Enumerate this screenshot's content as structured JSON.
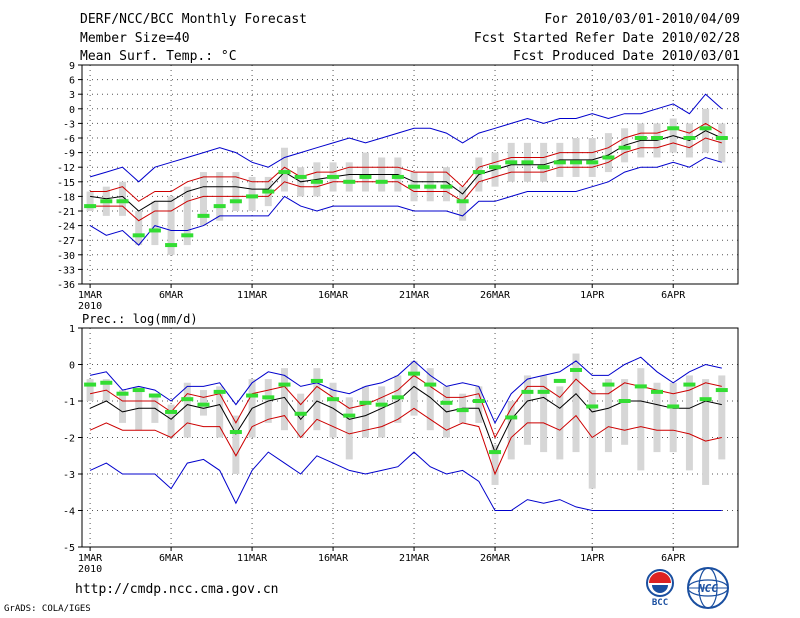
{
  "header": {
    "title": "DERF/NCC/BCC Monthly Forecast",
    "member_size": "Member Size=40",
    "variable": "Mean Surf. Temp.: °C",
    "period": "For 2010/03/01-2010/04/09",
    "start_date": "Fcst Started Refer Date 2010/02/28",
    "produced_date": "Fcst Produced Date 2010/03/01"
  },
  "footer": {
    "url": "http://cmdp.ncc.cma.gov.cn",
    "grads": "GrADS: COLA/IGES"
  },
  "logos": {
    "bcc": "BCC",
    "ncc": "NCC"
  },
  "colors": {
    "ensemble_max_min": "#0000cc",
    "ensemble_spread": "#cc0000",
    "ensemble_mean": "#000000",
    "observed": "#33dd33",
    "box": "#d6d6d6",
    "grid": "#555555"
  },
  "chart_data": [
    {
      "type": "line",
      "title": "Mean Surf. Temp.: °C",
      "ylabel": "°C",
      "ylim": [
        -36,
        9
      ],
      "yticks": [
        9,
        6,
        3,
        0,
        -3,
        -6,
        -9,
        -12,
        -15,
        -18,
        -21,
        -24,
        -27,
        -30,
        -33,
        -36
      ],
      "xlim": [
        0.5,
        41
      ],
      "xticks": [
        {
          "day": 1,
          "label": "1MAR",
          "sub": "2010"
        },
        {
          "day": 6,
          "label": "6MAR"
        },
        {
          "day": 11,
          "label": "11MAR"
        },
        {
          "day": 16,
          "label": "16MAR"
        },
        {
          "day": 21,
          "label": "21MAR"
        },
        {
          "day": 26,
          "label": "26MAR"
        },
        {
          "day": 32,
          "label": "1APR"
        },
        {
          "day": 37,
          "label": "6APR"
        }
      ],
      "days": [
        1,
        2,
        3,
        4,
        5,
        6,
        7,
        8,
        9,
        10,
        11,
        12,
        13,
        14,
        15,
        16,
        17,
        18,
        19,
        20,
        21,
        22,
        23,
        24,
        25,
        26,
        27,
        28,
        29,
        30,
        31,
        32,
        33,
        34,
        35,
        36,
        37,
        38,
        39,
        40
      ],
      "series": [
        {
          "name": "ensemble max",
          "values": [
            -14,
            -13,
            -12,
            -15,
            -12,
            -11,
            -10,
            -9,
            -8,
            -9,
            -11,
            -12,
            -10,
            -9,
            -8,
            -7,
            -6,
            -7,
            -6,
            -5,
            -4,
            -4,
            -5,
            -7,
            -5,
            -4,
            -3,
            -2,
            -3,
            -2,
            -2,
            -1,
            -2,
            -1,
            -1,
            0,
            1,
            -1,
            3,
            0
          ]
        },
        {
          "name": "ensemble max",
          "values": [
            -24,
            -26,
            -25,
            -28,
            -24,
            -25,
            -25,
            -24,
            -22,
            -22,
            -22,
            -22,
            -18,
            -20,
            -21,
            -20,
            -20,
            -20,
            -20,
            -20,
            -21,
            -21,
            -21,
            -22,
            -19,
            -19,
            -18,
            -17,
            -17,
            -17,
            -17,
            -16,
            -15,
            -13,
            -12,
            -12,
            -11,
            -12,
            -10,
            -11
          ]
        },
        {
          "name": "ensemble spread upper",
          "values": [
            -17,
            -17,
            -16,
            -19,
            -17,
            -17,
            -15,
            -14,
            -14,
            -14,
            -15,
            -15,
            -12,
            -14,
            -13,
            -13,
            -12,
            -12,
            -12,
            -12,
            -13,
            -13,
            -13,
            -16,
            -12,
            -11,
            -10,
            -10,
            -10,
            -9,
            -9,
            -9,
            -8,
            -6,
            -5,
            -5,
            -4,
            -5,
            -3,
            -5
          ]
        },
        {
          "name": "ensemble spread lower",
          "values": [
            -20,
            -20,
            -20,
            -23,
            -21,
            -21,
            -19,
            -18,
            -18,
            -18,
            -18,
            -18,
            -15,
            -16,
            -16,
            -15,
            -15,
            -15,
            -15,
            -15,
            -17,
            -17,
            -17,
            -19,
            -15,
            -14,
            -13,
            -13,
            -13,
            -12,
            -12,
            -12,
            -11,
            -9,
            -8,
            -8,
            -7,
            -8,
            -6,
            -7
          ]
        },
        {
          "name": "ensemble mean",
          "values": [
            -18,
            -18.5,
            -18,
            -21,
            -19,
            -19,
            -17,
            -16,
            -16,
            -16,
            -16.5,
            -16.5,
            -13,
            -15,
            -14.5,
            -14,
            -13.5,
            -13.5,
            -13.5,
            -13.5,
            -15,
            -15,
            -15,
            -17.5,
            -13.5,
            -12.5,
            -11.5,
            -11.5,
            -11.5,
            -10.5,
            -10.5,
            -10.5,
            -9.5,
            -7.5,
            -6.5,
            -6.5,
            -5.5,
            -6.5,
            -4.5,
            -6
          ]
        },
        {
          "name": "observed",
          "values": [
            -20,
            -19,
            -19,
            -26,
            -25,
            -28,
            -26,
            -22,
            -20,
            -19,
            -18,
            -17,
            -13,
            -14,
            -15,
            -14,
            -15,
            -14,
            -15,
            -14,
            -16,
            -16,
            -16,
            -19,
            -13,
            -12,
            -11,
            -11,
            -12,
            -11,
            -11,
            -11,
            -10,
            -8,
            -6,
            -6,
            -4,
            -6,
            -4,
            -6
          ]
        },
        {
          "name": "box upper",
          "values": [
            -17,
            -16,
            -15,
            -21,
            -19,
            -18,
            -16,
            -13,
            -13,
            -13,
            -14,
            -14,
            -8,
            -12,
            -11,
            -11,
            -11,
            -9,
            -10,
            -10,
            -13,
            -13,
            -12,
            -16,
            -10,
            -9,
            -7,
            -7,
            -7,
            -7,
            -6,
            -6,
            -5,
            -4,
            -3,
            -3,
            -2,
            -3,
            0,
            -3
          ]
        },
        {
          "name": "box lower",
          "values": [
            -21,
            -22,
            -22,
            -28,
            -28,
            -30,
            -28,
            -24,
            -23,
            -21,
            -21,
            -20,
            -17,
            -18,
            -18,
            -17,
            -17,
            -17,
            -17,
            -17,
            -19,
            -19,
            -19,
            -23,
            -17,
            -16,
            -15,
            -15,
            -15,
            -14,
            -14,
            -14,
            -13,
            -11,
            -10,
            -10,
            -9,
            -10,
            -9,
            -11
          ]
        }
      ]
    },
    {
      "type": "line",
      "title": "Prec.: log(mm/d)",
      "ylabel": "log(mm/d)",
      "ylim": [
        -5,
        1
      ],
      "yticks": [
        1,
        0,
        -1,
        -2,
        -3,
        -4,
        -5
      ],
      "xlim": [
        0.5,
        41
      ],
      "xticks": [
        {
          "day": 1,
          "label": "1MAR",
          "sub": "2010"
        },
        {
          "day": 6,
          "label": "6MAR"
        },
        {
          "day": 11,
          "label": "11MAR"
        },
        {
          "day": 16,
          "label": "16MAR"
        },
        {
          "day": 21,
          "label": "21MAR"
        },
        {
          "day": 26,
          "label": "26MAR"
        },
        {
          "day": 32,
          "label": "1APR"
        },
        {
          "day": 37,
          "label": "6APR"
        }
      ],
      "days": [
        1,
        2,
        3,
        4,
        5,
        6,
        7,
        8,
        9,
        10,
        11,
        12,
        13,
        14,
        15,
        16,
        17,
        18,
        19,
        20,
        21,
        22,
        23,
        24,
        25,
        26,
        27,
        28,
        29,
        30,
        31,
        32,
        33,
        34,
        35,
        36,
        37,
        38,
        39,
        40
      ],
      "series": [
        {
          "name": "ensemble max",
          "values": [
            -0.3,
            -0.2,
            -0.7,
            -0.6,
            -0.7,
            -1.0,
            -0.6,
            -0.6,
            -0.5,
            -1.1,
            -0.5,
            -0.2,
            -0.3,
            -0.6,
            -0.5,
            -0.7,
            -0.8,
            -0.6,
            -0.5,
            -0.3,
            0.1,
            -0.3,
            -0.6,
            -0.5,
            -0.6,
            -1.6,
            -0.8,
            -0.4,
            -0.3,
            -0.2,
            0.1,
            -0.3,
            -0.3,
            0.0,
            0.2,
            -0.2,
            -0.5,
            -0.2,
            0.0,
            -0.1
          ]
        },
        {
          "name": "ensemble min",
          "values": [
            -2.9,
            -2.7,
            -3.0,
            -3.0,
            -3.0,
            -3.4,
            -2.7,
            -2.6,
            -2.9,
            -3.8,
            -2.9,
            -2.4,
            -2.7,
            -3.0,
            -2.5,
            -2.7,
            -2.9,
            -3.0,
            -2.9,
            -2.8,
            -2.4,
            -2.8,
            -3.0,
            -2.9,
            -3.2,
            -4.0,
            -4.0,
            -3.7,
            -3.8,
            -3.7,
            -3.9,
            -4.0,
            -4.0,
            -4.0,
            -4.0,
            -4.0,
            -4.0,
            -4.0,
            -4.0,
            -4.0
          ]
        },
        {
          "name": "ensemble spread upper",
          "values": [
            -0.8,
            -0.7,
            -1.0,
            -1.0,
            -1.0,
            -1.3,
            -0.8,
            -0.9,
            -0.8,
            -1.6,
            -0.8,
            -0.7,
            -0.6,
            -1.1,
            -0.6,
            -0.9,
            -1.2,
            -1.1,
            -0.9,
            -0.7,
            -0.3,
            -0.6,
            -0.9,
            -0.9,
            -0.8,
            -2.0,
            -1.2,
            -0.6,
            -0.6,
            -0.9,
            -0.4,
            -0.8,
            -0.8,
            -0.5,
            -0.6,
            -0.7,
            -0.8,
            -0.7,
            -0.5,
            -0.6
          ]
        },
        {
          "name": "ensemble spread lower",
          "values": [
            -1.8,
            -1.6,
            -1.8,
            -1.8,
            -1.8,
            -2.0,
            -1.6,
            -1.7,
            -1.7,
            -2.5,
            -1.7,
            -1.5,
            -1.4,
            -2.0,
            -1.5,
            -1.7,
            -1.9,
            -1.8,
            -1.7,
            -1.5,
            -1.2,
            -1.5,
            -1.8,
            -1.6,
            -1.7,
            -3.0,
            -2.0,
            -1.6,
            -1.6,
            -1.8,
            -1.4,
            -2.0,
            -1.7,
            -1.8,
            -1.7,
            -1.8,
            -1.8,
            -1.9,
            -2.1,
            -2.0
          ]
        },
        {
          "name": "ensemble mean",
          "values": [
            -1.2,
            -1.0,
            -1.3,
            -1.2,
            -1.2,
            -1.5,
            -1.1,
            -1.2,
            -1.1,
            -1.9,
            -1.2,
            -1.0,
            -0.9,
            -1.5,
            -1.0,
            -1.2,
            -1.5,
            -1.4,
            -1.2,
            -1.0,
            -0.6,
            -0.9,
            -1.3,
            -1.2,
            -1.2,
            -2.4,
            -1.5,
            -1.0,
            -0.9,
            -1.2,
            -0.8,
            -1.3,
            -1.2,
            -1.0,
            -1.0,
            -1.1,
            -1.2,
            -1.2,
            -1.0,
            -1.1
          ]
        },
        {
          "name": "observed",
          "values": [
            -0.55,
            -0.5,
            -0.8,
            -0.7,
            -0.85,
            -1.3,
            -0.95,
            -1.1,
            -0.75,
            -1.85,
            -0.85,
            -0.9,
            -0.55,
            -1.35,
            -0.45,
            -0.95,
            -1.4,
            -1.05,
            -1.1,
            -0.9,
            -0.25,
            -0.55,
            -1.05,
            -1.25,
            -1.0,
            -2.4,
            -1.45,
            -0.75,
            -0.75,
            -0.45,
            -0.15,
            -1.15,
            -0.55,
            -1.0,
            -0.6,
            -0.75,
            -1.15,
            -0.55,
            -0.95,
            -0.7
          ]
        },
        {
          "name": "box upper",
          "values": [
            -0.4,
            -0.4,
            -0.7,
            -0.6,
            -0.8,
            -1.1,
            -0.5,
            -0.7,
            -0.6,
            -1.4,
            -0.4,
            -0.4,
            -0.1,
            -0.8,
            -0.1,
            -0.5,
            -0.9,
            -0.6,
            -0.6,
            -0.3,
            0.1,
            -0.1,
            -0.6,
            -0.8,
            -0.6,
            -2.2,
            -1.0,
            -0.3,
            -0.3,
            -0.6,
            0.3,
            -0.7,
            -0.4,
            -0.4,
            -0.1,
            -0.5,
            -0.5,
            -0.3,
            -0.4,
            -0.3
          ]
        },
        {
          "name": "box lower",
          "values": [
            -1.0,
            -1.0,
            -1.6,
            -1.8,
            -1.6,
            -2.0,
            -2.0,
            -1.4,
            -2.0,
            -3.0,
            -2.0,
            -1.6,
            -1.8,
            -2.0,
            -1.8,
            -2.0,
            -2.6,
            -2.0,
            -2.0,
            -1.6,
            -1.4,
            -1.8,
            -2.0,
            -1.6,
            -1.6,
            -3.3,
            -2.6,
            -2.2,
            -2.4,
            -2.6,
            -2.4,
            -3.4,
            -2.4,
            -2.2,
            -2.9,
            -2.4,
            -2.4,
            -2.9,
            -3.3,
            -2.6
          ]
        }
      ]
    }
  ]
}
